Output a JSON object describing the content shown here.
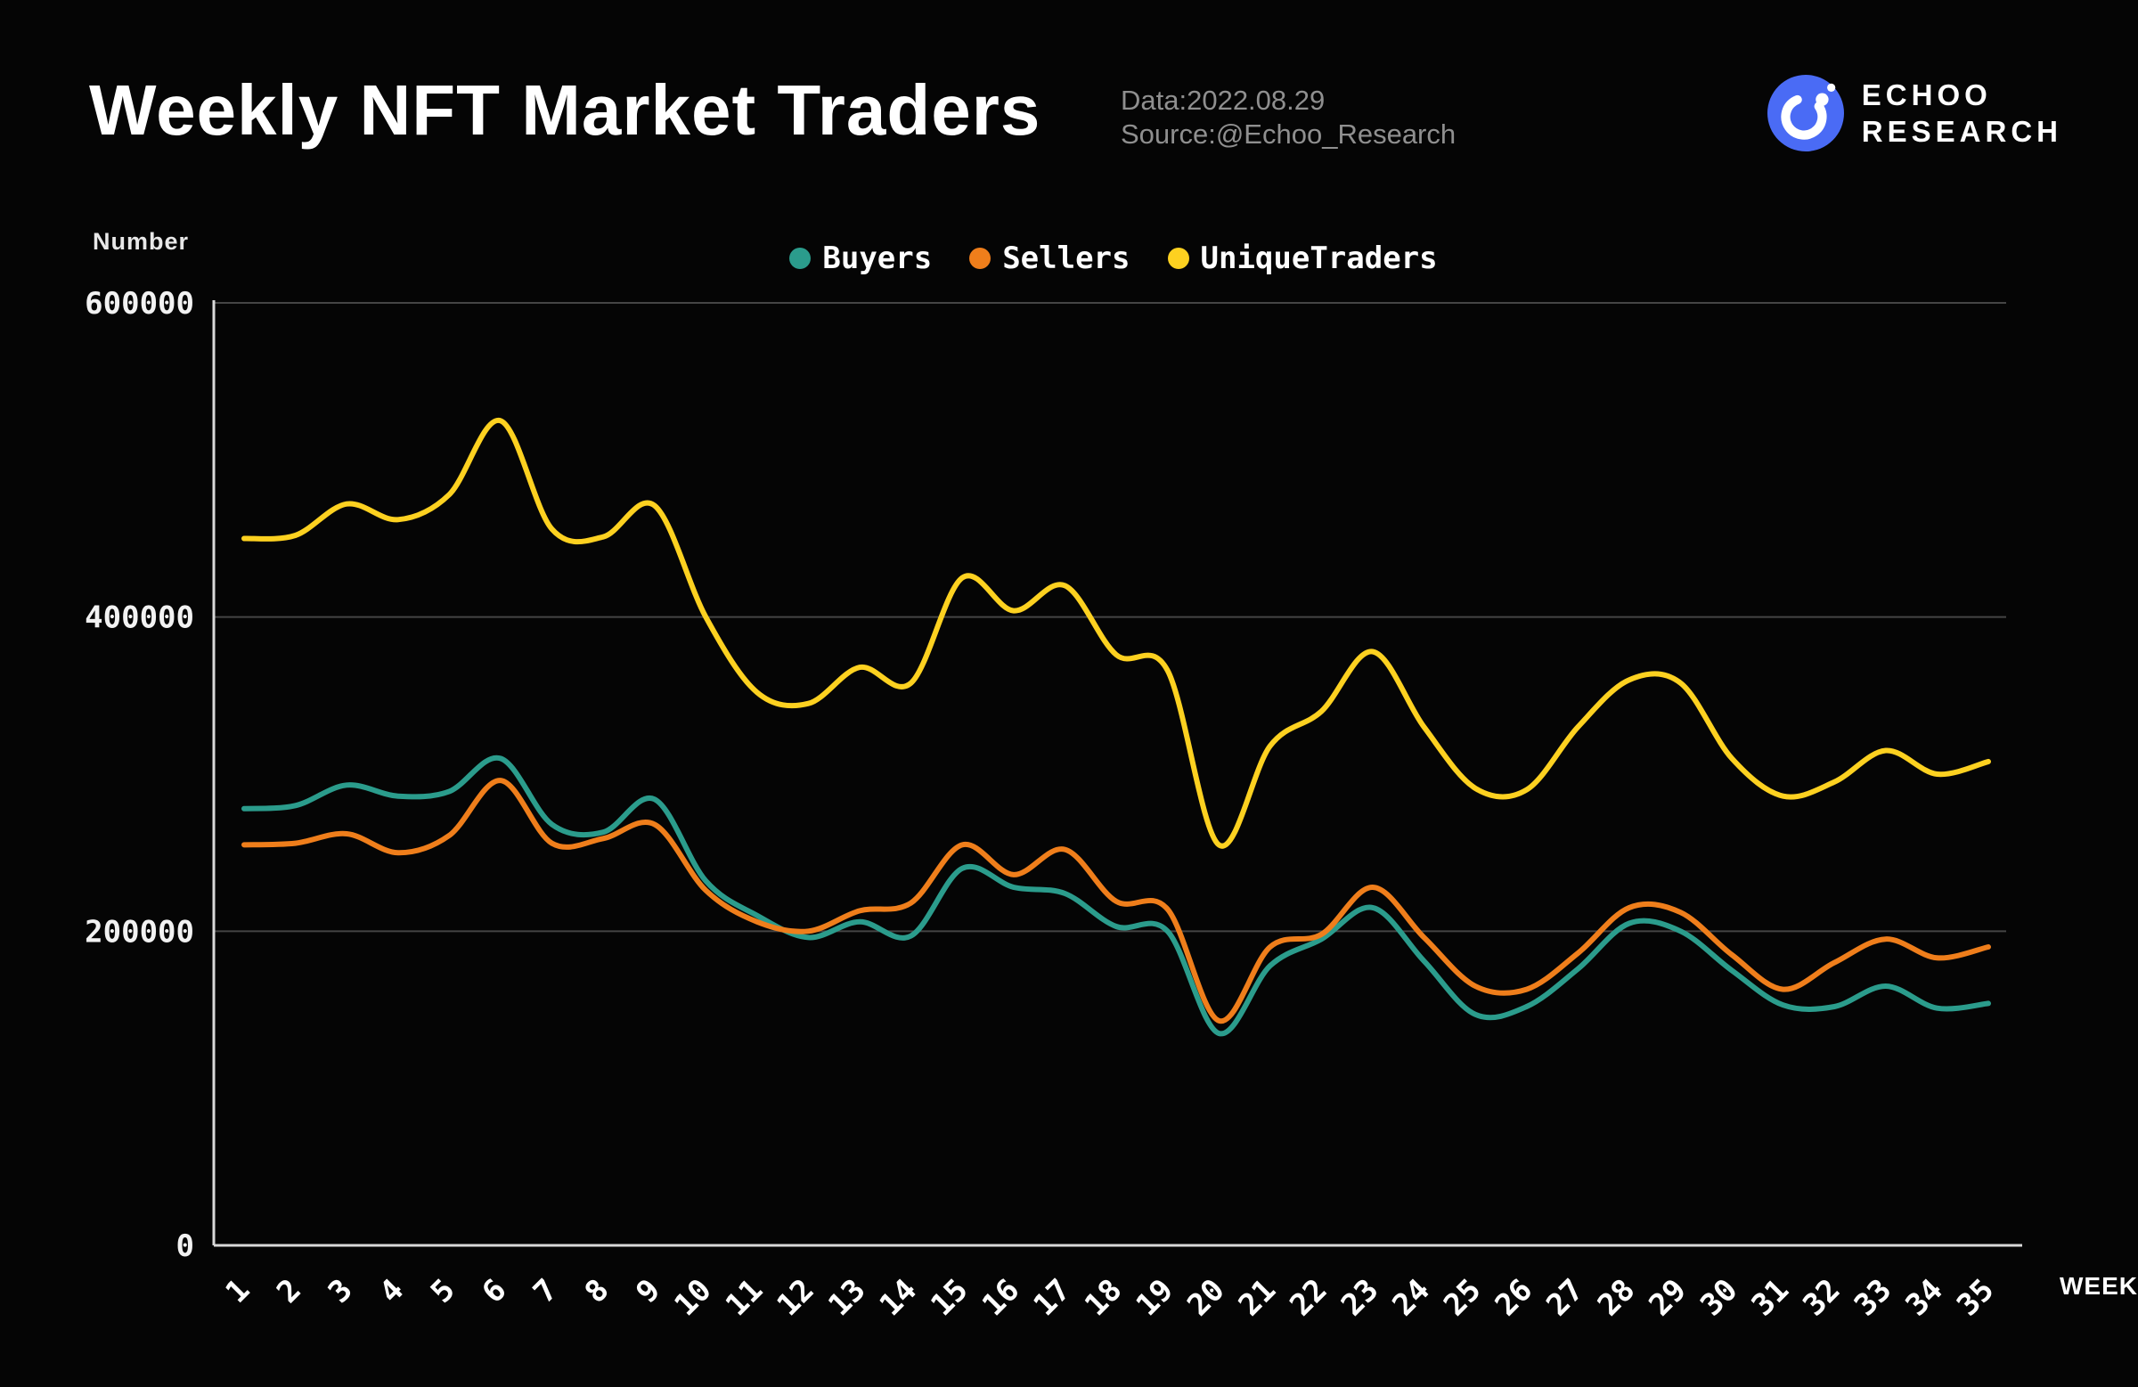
{
  "header": {
    "title": "Weekly NFT Market Traders",
    "date_label": "Data:2022.08.29",
    "source_label": "Source:@Echoo_Research",
    "brand_line1": "ECHOO",
    "brand_line2": "RESEARCH",
    "brand_color": "#4a6bf5"
  },
  "chart_data": {
    "type": "line",
    "title": "Weekly NFT Market Traders",
    "ylabel": "Number",
    "xlabel": "WEEK",
    "ylim": [
      0,
      600000
    ],
    "yticks": [
      0,
      200000,
      400000,
      600000
    ],
    "grid": true,
    "legend_position": "top",
    "grid_color": "#454545",
    "axis_color": "#d9d9d9",
    "tick_text_color": "#f2f2f2",
    "categories": [
      "1",
      "2",
      "3",
      "4",
      "5",
      "6",
      "7",
      "8",
      "9",
      "10",
      "11",
      "12",
      "13",
      "14",
      "15",
      "16",
      "17",
      "18",
      "19",
      "20",
      "21",
      "22",
      "23",
      "24",
      "25",
      "26",
      "27",
      "28",
      "29",
      "30",
      "31",
      "32",
      "33",
      "34",
      "35"
    ],
    "series": [
      {
        "name": "Buyers",
        "color": "#2b9c8c",
        "values": [
          278000,
          280000,
          293000,
          286000,
          289000,
          310000,
          268000,
          263000,
          284000,
          232000,
          210000,
          196000,
          206000,
          197000,
          240000,
          228000,
          224000,
          203000,
          200000,
          135000,
          178000,
          195000,
          215000,
          181000,
          147000,
          152000,
          176000,
          205000,
          200000,
          175000,
          153000,
          152000,
          165000,
          151000,
          154000
        ]
      },
      {
        "name": "Sellers",
        "color": "#ef7e1b",
        "values": [
          255000,
          256000,
          262000,
          250000,
          261000,
          296000,
          256000,
          259000,
          268000,
          226000,
          206000,
          200000,
          213000,
          218000,
          255000,
          236000,
          252000,
          219000,
          214000,
          143000,
          190000,
          198000,
          228000,
          196000,
          165000,
          163000,
          186000,
          215000,
          212000,
          185000,
          163000,
          180000,
          195000,
          183000,
          190000
        ]
      },
      {
        "name": "UniqueTraders",
        "color": "#fdd120",
        "values": [
          450000,
          452000,
          472000,
          462000,
          478000,
          525000,
          456000,
          451000,
          471000,
          400000,
          352000,
          345000,
          368000,
          358000,
          425000,
          404000,
          420000,
          376000,
          366000,
          255000,
          318000,
          340000,
          378000,
          330000,
          291000,
          290000,
          330000,
          360000,
          358000,
          310000,
          286000,
          295000,
          315000,
          300000,
          308000
        ]
      }
    ]
  }
}
